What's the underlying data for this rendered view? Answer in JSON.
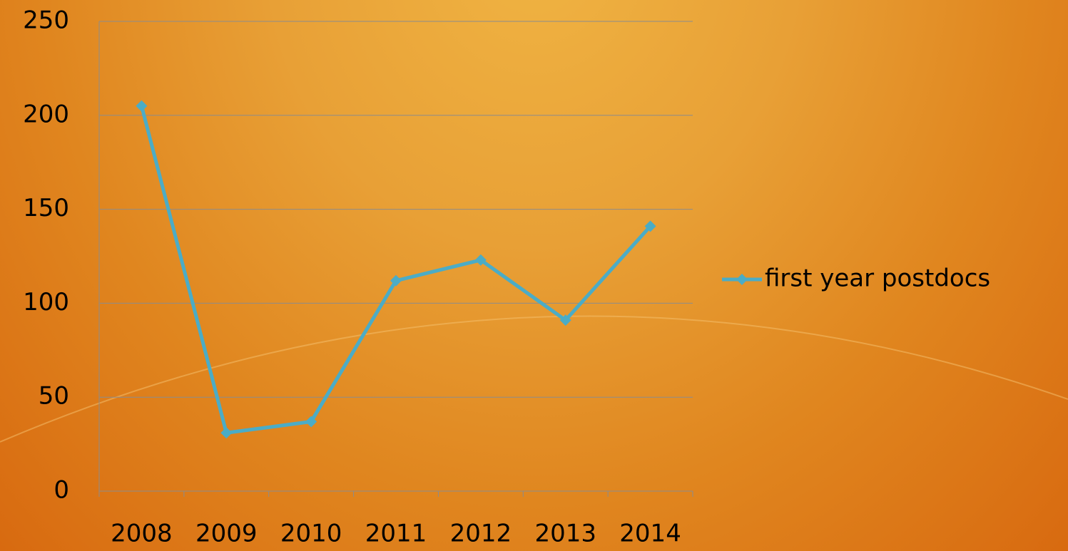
{
  "chart_data": {
    "type": "line",
    "categories": [
      "2008",
      "2009",
      "2010",
      "2011",
      "2012",
      "2013",
      "2014"
    ],
    "series": [
      {
        "name": "first year postdocs",
        "color": "#4bacc6",
        "values": [
          205,
          31,
          37,
          112,
          123,
          91,
          141
        ]
      }
    ],
    "ylim": [
      0,
      250
    ],
    "yticks": [
      0,
      50,
      100,
      150,
      200,
      250
    ],
    "grid": true,
    "legend": "right"
  }
}
